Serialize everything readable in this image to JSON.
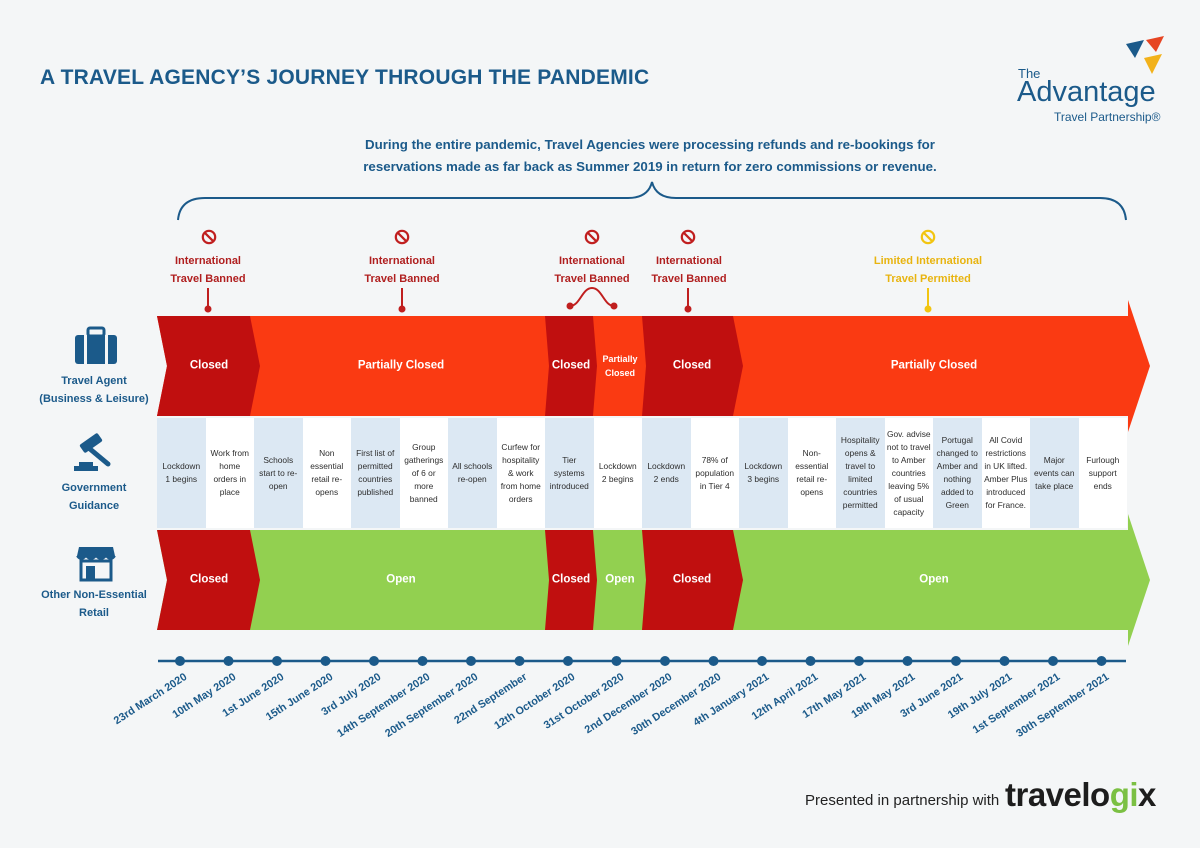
{
  "title": "A TRAVEL AGENCY’S JOURNEY THROUGH THE PANDEMIC",
  "logo": {
    "the": "The",
    "name": "Advantage",
    "tagline": "Travel Partnership®"
  },
  "intro": "During the entire pandemic, Travel Agencies were processing refunds and re-bookings for reservations made as far back as Summer 2019 in return for zero commissions or revenue.",
  "statuses": [
    {
      "text": "International Travel Banned",
      "kind": "banned"
    },
    {
      "text": "International Travel Banned",
      "kind": "banned"
    },
    {
      "text": "International Travel Banned",
      "kind": "banned"
    },
    {
      "text": "International Travel Banned",
      "kind": "banned"
    },
    {
      "text": "Limited International Travel Permitted",
      "kind": "limited"
    }
  ],
  "rows": {
    "travel_agent": {
      "label_line1": "Travel Agent",
      "label_line2": "(Business & Leisure)"
    },
    "government": {
      "label_line1": "Government",
      "label_line2": "Guidance"
    },
    "retail": {
      "label_line1": "Other  Non-Essential",
      "label_line2": "Retail"
    }
  },
  "travel_agent_bands": [
    "Closed",
    "Partially Closed",
    "Closed",
    "Partially Closed",
    "Closed",
    "Partially Closed"
  ],
  "retail_bands": [
    "Closed",
    "Open",
    "Closed",
    "Open",
    "Closed",
    "Open"
  ],
  "government_guidance": [
    "Lockdown 1 begins",
    "Work from home orders in place",
    "Schools start to re-open",
    "Non essential retail re-opens",
    "First list of permitted countries published",
    "Group gatherings of 6 or more banned",
    "All schools re-open",
    "Curfew for hospitality & work from home orders",
    "Tier systems introduced",
    "Lockdown 2 begins",
    "Lockdown 2 ends",
    "78% of population in Tier 4",
    "Lockdown 3 begins",
    "Non-essential retail re-opens",
    "Hospitality opens & travel to limited countries permitted",
    "Gov. advise not to travel to Amber countries leaving 5% of usual capacity",
    "Portugal changed to Amber and nothing added to Green",
    "All Covid restrictions in UK lifted. Amber Plus introduced for France.",
    "Major events can take place",
    "Furlough support ends"
  ],
  "dates": [
    "23rd March 2020",
    "10th May 2020",
    "1st June 2020",
    "15th June 2020",
    "3rd July 2020",
    "14th September 2020",
    "20th September 2020",
    "22nd September",
    "12th October 2020",
    "31st October 2020",
    "2nd December 2020",
    "30th December 2020",
    "4th January 2021",
    "12th April 2021",
    "17th May 2021",
    "19th May 2021",
    "3rd June 2021",
    "19th July 2021",
    "1st September 2021",
    "30th September 2021"
  ],
  "footer": {
    "presented": "Presented in partnership with",
    "brand_pre": "travelo",
    "brand_gi": "gi",
    "brand_post": "x"
  },
  "colors": {
    "dark_red": "#c00f0f",
    "orange_red": "#fa3a12",
    "green": "#92d050",
    "navy": "#1b5a8a",
    "yellow": "#f2c511"
  }
}
